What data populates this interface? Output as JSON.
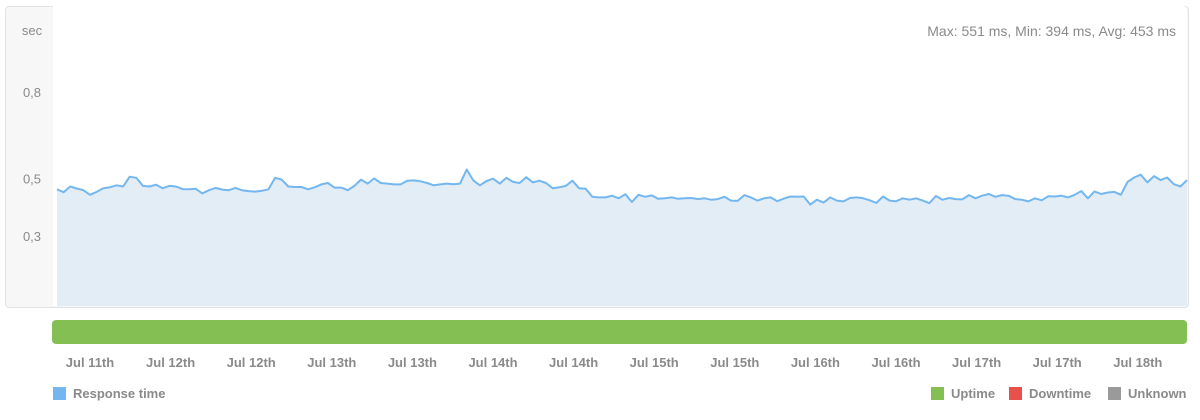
{
  "summary": {
    "text": "Max: 551 ms, Min: 394 ms, Avg: 453 ms"
  },
  "colors": {
    "line": "#74b7ef",
    "area": "#e3edf6",
    "uptime": "#84bf54",
    "downtime": "#e8514b",
    "unknown": "#9a9a9a"
  },
  "legend": {
    "response_time": "Response time",
    "uptime": "Uptime",
    "downtime": "Downtime",
    "unknown": "Unknown"
  },
  "chart_data": {
    "type": "area",
    "ylabel": "sec",
    "yticks": [
      {
        "value": 0.3,
        "label": "0,3"
      },
      {
        "value": 0.5,
        "label": "0,5"
      },
      {
        "value": 0.8,
        "label": "0,8"
      }
    ],
    "ylim": [
      0,
      1.0
    ],
    "xticks": [
      "Jul 11th",
      "Jul 12th",
      "Jul 12th",
      "Jul 13th",
      "Jul 13th",
      "Jul 14th",
      "Jul 14th",
      "Jul 15th",
      "Jul 15th",
      "Jul 16th",
      "Jul 16th",
      "Jul 17th",
      "Jul 17th",
      "Jul 18th"
    ],
    "series": [
      {
        "name": "Response time",
        "values": [
          0.462,
          0.452,
          0.472,
          0.465,
          0.459,
          0.443,
          0.453,
          0.466,
          0.469,
          0.476,
          0.472,
          0.506,
          0.502,
          0.474,
          0.472,
          0.478,
          0.466,
          0.474,
          0.472,
          0.463,
          0.462,
          0.464,
          0.448,
          0.459,
          0.467,
          0.461,
          0.459,
          0.467,
          0.459,
          0.456,
          0.454,
          0.457,
          0.462,
          0.502,
          0.496,
          0.472,
          0.47,
          0.47,
          0.462,
          0.469,
          0.479,
          0.484,
          0.468,
          0.468,
          0.459,
          0.474,
          0.496,
          0.482,
          0.5,
          0.484,
          0.482,
          0.479,
          0.479,
          0.492,
          0.493,
          0.49,
          0.484,
          0.476,
          0.479,
          0.482,
          0.48,
          0.482,
          0.531,
          0.493,
          0.476,
          0.491,
          0.499,
          0.482,
          0.502,
          0.488,
          0.484,
          0.504,
          0.486,
          0.492,
          0.484,
          0.466,
          0.469,
          0.474,
          0.492,
          0.466,
          0.464,
          0.436,
          0.434,
          0.434,
          0.44,
          0.431,
          0.445,
          0.418,
          0.443,
          0.436,
          0.441,
          0.429,
          0.431,
          0.434,
          0.429,
          0.431,
          0.432,
          0.428,
          0.431,
          0.426,
          0.428,
          0.436,
          0.423,
          0.422,
          0.442,
          0.434,
          0.423,
          0.431,
          0.434,
          0.421,
          0.43,
          0.437,
          0.436,
          0.437,
          0.409,
          0.426,
          0.416,
          0.434,
          0.423,
          0.42,
          0.432,
          0.434,
          0.431,
          0.424,
          0.415,
          0.437,
          0.423,
          0.421,
          0.431,
          0.426,
          0.431,
          0.423,
          0.414,
          0.439,
          0.426,
          0.432,
          0.428,
          0.427,
          0.442,
          0.431,
          0.44,
          0.446,
          0.436,
          0.442,
          0.44,
          0.428,
          0.426,
          0.42,
          0.431,
          0.424,
          0.438,
          0.437,
          0.44,
          0.434,
          0.443,
          0.456,
          0.431,
          0.455,
          0.446,
          0.451,
          0.453,
          0.443,
          0.488,
          0.503,
          0.513,
          0.486,
          0.508,
          0.494,
          0.503,
          0.48,
          0.472,
          0.494
        ]
      }
    ],
    "grid": false,
    "legend_position": "bottom"
  }
}
